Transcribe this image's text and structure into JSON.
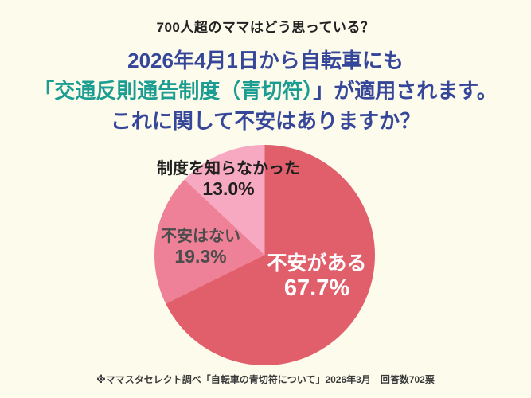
{
  "page": {
    "eyebrow": "700人超のママはどう思っている？",
    "heading": {
      "line1": "2026年4月1日から自転車にも",
      "line2_highlight": "「交通反則通告制度（青切符）",
      "line2_rest": "」が適用されます。",
      "line3": "これに関して不安はありますか？"
    },
    "caption": "※ママスタセレクト調べ「自転車の青切符について」2026年3月　回答数702票",
    "colors": {
      "background": "#fdfbec",
      "heading_navy": "#36479a",
      "heading_teal": "#1c9d92",
      "label_black": "#1f1f1f",
      "label_gray": "#4c4c4c",
      "label_white": "#ffffff"
    }
  },
  "chart_data": {
    "type": "pie",
    "title": "2026年4月1日から自転車にも「交通反則通告制度（青切符）」が適用されます。これに関して不安はありますか？",
    "start_angle_deg": 0,
    "direction": "clockwise",
    "legend_position": "none",
    "total_responses": "702",
    "slices": [
      {
        "label": "不安がある",
        "pct_label": "67.7%",
        "value": 67.7,
        "color": "#e05f6b",
        "text_color": "#ffffff"
      },
      {
        "label": "不安はない",
        "pct_label": "19.3%",
        "value": 19.3,
        "color": "#ee8197",
        "text_color": "#4c4c4c"
      },
      {
        "label": "制度を知らなかった",
        "pct_label": "13.0%",
        "value": 13.0,
        "color": "#f6a9c1",
        "text_color": "#1f1f1f"
      }
    ]
  }
}
